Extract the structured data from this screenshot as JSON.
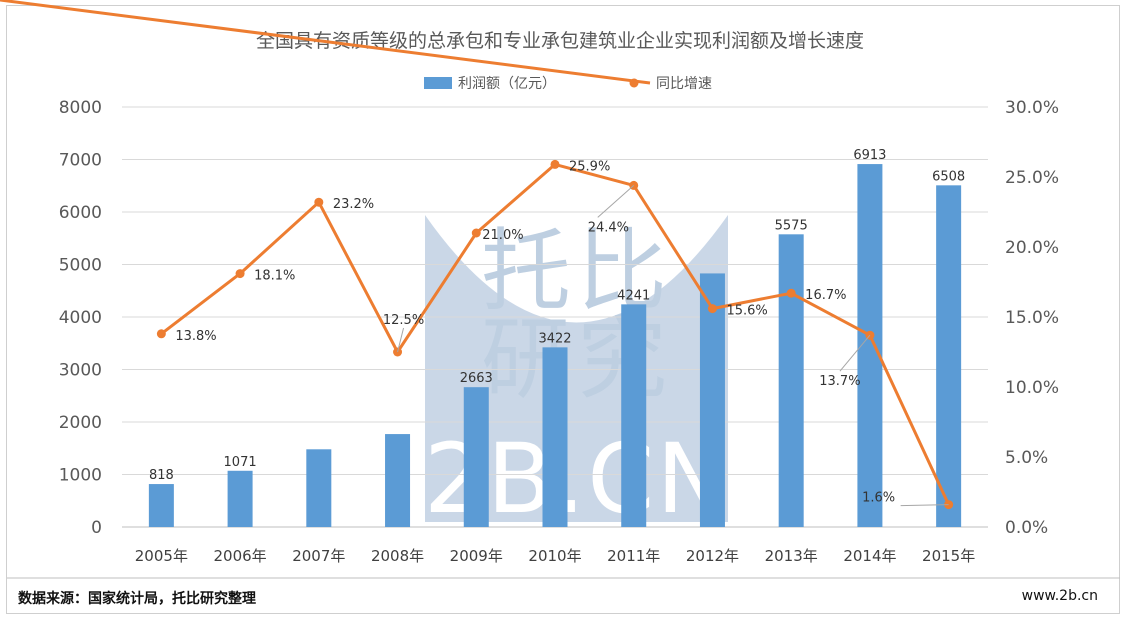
{
  "chart_data": {
    "type": "bar+line",
    "title": "全国具有资质等级的总承包和专业承包建筑业企业实现利润额及增长速度",
    "categories": [
      "2005年",
      "2006年",
      "2007年",
      "2008年",
      "2009年",
      "2010年",
      "2011年",
      "2012年",
      "2013年",
      "2014年",
      "2015年"
    ],
    "series": [
      {
        "name": "利润额（亿元）",
        "kind": "bar",
        "axis": "left",
        "color": "#5b9bd5",
        "values": [
          818,
          1071,
          1480,
          1770,
          2663,
          3422,
          4241,
          4830,
          5575,
          6913,
          6508
        ],
        "labels": [
          "818",
          "1071",
          null,
          null,
          "2663",
          "3422",
          "4241",
          null,
          "5575",
          "6913",
          "6508"
        ]
      },
      {
        "name": "同比增速",
        "kind": "line",
        "axis": "right",
        "color": "#ed7d31",
        "values": [
          13.8,
          18.1,
          23.2,
          12.5,
          21.0,
          25.9,
          24.4,
          15.6,
          16.7,
          13.7,
          1.6
        ],
        "labels": [
          "13.8%",
          "18.1%",
          "23.2%",
          "12.5%",
          "21.0%",
          "25.9%",
          "24.4%",
          "15.6%",
          "16.7%",
          "13.7%",
          "1.6%"
        ]
      }
    ],
    "left_axis": {
      "min": 0,
      "max": 8000,
      "ticks": [
        "0",
        "1000",
        "2000",
        "3000",
        "4000",
        "5000",
        "6000",
        "7000",
        "8000"
      ]
    },
    "right_axis": {
      "min": 0,
      "max": 30,
      "ticks": [
        "0.0%",
        "5.0%",
        "10.0%",
        "15.0%",
        "20.0%",
        "25.0%",
        "30.0%"
      ]
    },
    "grid": true,
    "legend": "top-center"
  },
  "footer": {
    "source": "数据来源：国家统计局，托比研究整理",
    "site": "www.2b.cn"
  },
  "watermark": {
    "line1": "托比",
    "line2": "研究",
    "line3": "2B.CN"
  }
}
